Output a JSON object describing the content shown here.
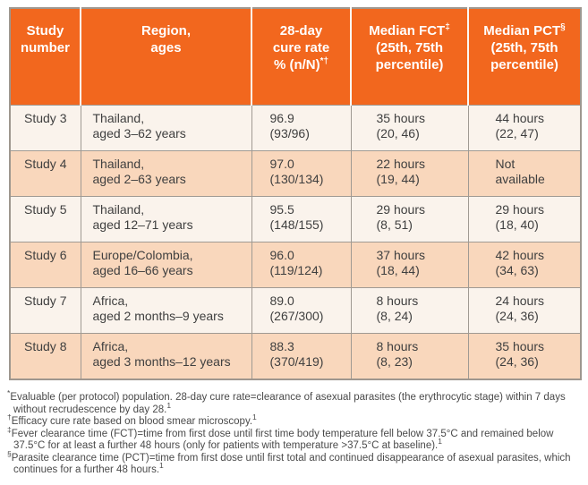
{
  "table": {
    "headers": [
      {
        "text": "Study\nnumber",
        "sup": "",
        "rest": ""
      },
      {
        "text": "Region,\nages",
        "sup": "",
        "rest": ""
      },
      {
        "text": "28-day\ncure rate\n% (n/N)",
        "sup": "*†",
        "rest": ""
      },
      {
        "text": "Median FCT",
        "sup": "‡",
        "rest": "\n(25th, 75th\npercentile)"
      },
      {
        "text": "Median PCT",
        "sup": "§",
        "rest": "\n(25th, 75th\npercentile)"
      }
    ],
    "rows": [
      {
        "cells": [
          "Study 3",
          "Thailand,\naged 3–62 years",
          "96.9\n(93/96)",
          "35 hours\n(20, 46)",
          "44 hours\n(22, 47)"
        ]
      },
      {
        "cells": [
          "Study 4",
          "Thailand,\naged 2–63 years",
          "97.0\n(130/134)",
          "22 hours\n(19, 44)",
          "Not\navailable"
        ]
      },
      {
        "cells": [
          "Study 5",
          "Thailand,\naged 12–71 years",
          "95.5\n(148/155)",
          "29 hours\n(8, 51)",
          "29 hours\n(18, 40)"
        ]
      },
      {
        "cells": [
          "Study 6",
          "Europe/Colombia,\naged 16–66 years",
          "96.0\n(119/124)",
          "37 hours\n(18, 44)",
          "42 hours\n(34, 63)"
        ]
      },
      {
        "cells": [
          "Study 7",
          "Africa,\naged 2 months–9 years",
          "89.0\n(267/300)",
          "8 hours\n(8, 24)",
          "24 hours\n(24, 36)"
        ]
      },
      {
        "cells": [
          "Study 8",
          "Africa,\naged 3 months–12 years",
          "88.3\n(370/419)",
          "8 hours\n(8, 23)",
          "35 hours\n(24, 36)"
        ]
      }
    ]
  },
  "footnotes": [
    {
      "symbol": "*",
      "text": "Evaluable (per protocol) population. 28-day cure rate=clearance of asexual parasites (the erythrocytic stage) within 7 days without recrudescence by day 28.",
      "ref": "1"
    },
    {
      "symbol": "†",
      "text": "Efficacy cure rate based on blood smear microscopy.",
      "ref": "1"
    },
    {
      "symbol": "‡",
      "text": "Fever clearance time (FCT)=time from first dose until first time body temperature fell below 37.5°C and remained below 37.5°C for at least a further 48 hours (only for patients with temperature >37.5°C at baseline).",
      "ref": "1"
    },
    {
      "symbol": "§",
      "text": "Parasite clearance time (PCT)=time from first dose until first total and continued disappearance of asexual parasites, which continues for a further 48 hours.",
      "ref": "1"
    }
  ],
  "colors": {
    "header_bg": "#f2671e",
    "header_text": "#ffffff",
    "row_bg": "#faf3ec",
    "row_alt_bg": "#f9d7bc",
    "border": "#a09a93",
    "body_text": "#3f3f3f"
  }
}
